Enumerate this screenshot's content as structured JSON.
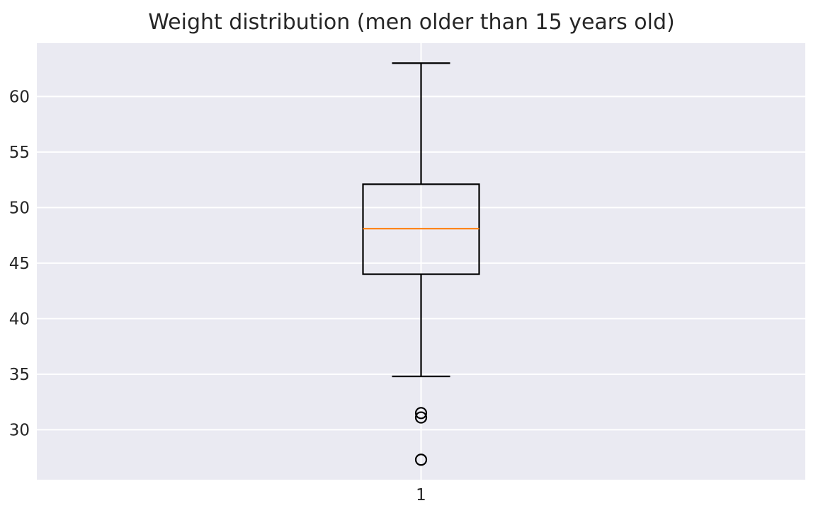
{
  "chart_data": {
    "type": "box",
    "title": "Weight distribution (men older than 15 years old)",
    "xlabel": "",
    "ylabel": "",
    "categories": [
      "1"
    ],
    "ylim": [
      25.5,
      64.8
    ],
    "yticks": [
      "30",
      "35",
      "40",
      "45",
      "50",
      "55",
      "60"
    ],
    "grid": true,
    "boxes": [
      {
        "category": "1",
        "whisker_low": 34.8,
        "q1": 44.0,
        "median": 48.1,
        "q3": 52.1,
        "whisker_high": 63.0,
        "outliers": [
          31.5,
          31.1,
          27.3
        ]
      }
    ],
    "colors": {
      "background": "#eaeaf2",
      "grid": "#ffffff",
      "box": "#000000",
      "median": "#ff7f0e",
      "text": "#262626"
    }
  }
}
